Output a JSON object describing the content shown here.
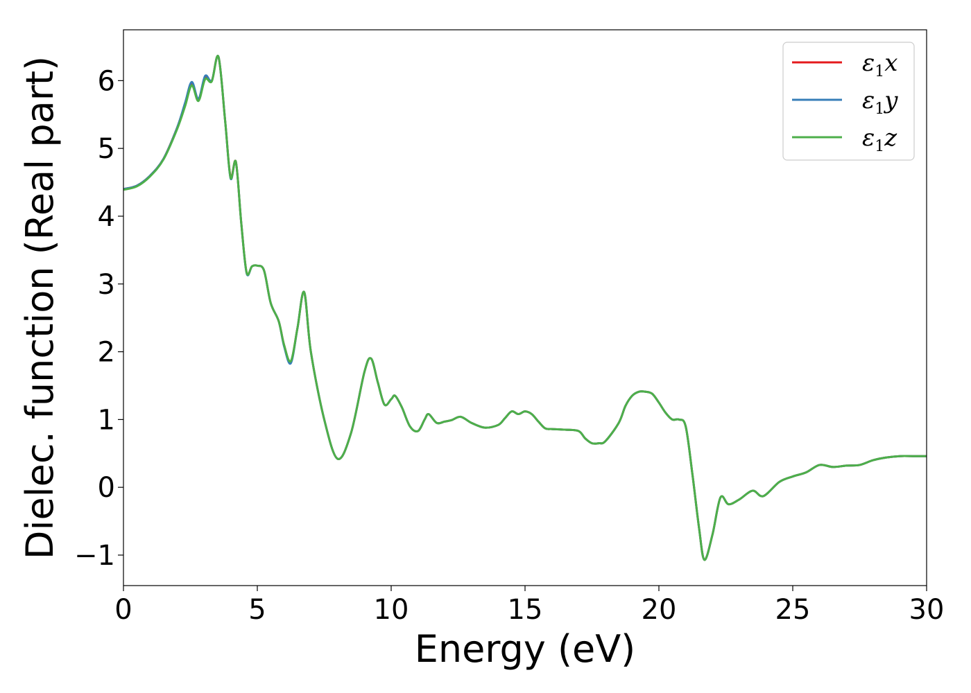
{
  "chart_data": {
    "type": "line",
    "title": "",
    "xlabel": "Energy (eV)",
    "ylabel": "Dielec. function (Real part)",
    "xlim": [
      0,
      30
    ],
    "ylim": [
      -1.45,
      6.75
    ],
    "xticks": [
      0,
      5,
      10,
      15,
      20,
      25,
      30
    ],
    "xtick_labels": [
      "0",
      "5",
      "10",
      "15",
      "20",
      "25",
      "30"
    ],
    "yticks": [
      -1,
      0,
      1,
      2,
      3,
      4,
      5,
      6
    ],
    "ytick_labels": [
      "−1",
      "0",
      "1",
      "2",
      "3",
      "4",
      "5",
      "6"
    ],
    "grid": false,
    "legend_position": "top-right",
    "x": [
      0,
      0.5,
      1.0,
      1.5,
      2.0,
      2.3,
      2.55,
      2.8,
      3.05,
      3.3,
      3.55,
      3.8,
      4.0,
      4.2,
      4.4,
      4.6,
      4.8,
      5.0,
      5.25,
      5.5,
      5.8,
      6.0,
      6.25,
      6.5,
      6.75,
      7.0,
      7.5,
      8.0,
      8.5,
      9.0,
      9.25,
      9.5,
      9.75,
      10.0,
      10.15,
      10.4,
      10.7,
      11.0,
      11.25,
      11.4,
      11.7,
      12.0,
      12.25,
      12.6,
      13.0,
      13.5,
      14.0,
      14.25,
      14.5,
      14.75,
      15.0,
      15.25,
      15.5,
      15.75,
      16.0,
      16.5,
      17.0,
      17.25,
      17.5,
      17.75,
      18.0,
      18.5,
      18.75,
      19.0,
      19.25,
      19.5,
      19.75,
      20.0,
      20.25,
      20.5,
      20.75,
      21.0,
      21.25,
      21.5,
      21.7,
      22.0,
      22.3,
      22.6,
      23.0,
      23.5,
      23.9,
      24.5,
      25.0,
      25.5,
      26.0,
      26.5,
      27.0,
      27.5,
      28.0,
      28.5,
      29.0,
      29.5,
      30.0
    ],
    "series": [
      {
        "name": "ε₁x",
        "color": "#e41a1c",
        "values": [
          4.4,
          4.45,
          4.6,
          4.85,
          5.3,
          5.65,
          5.95,
          5.72,
          6.05,
          6.0,
          6.35,
          5.4,
          4.58,
          4.8,
          3.9,
          3.17,
          3.26,
          3.27,
          3.2,
          2.72,
          2.45,
          2.1,
          1.85,
          2.35,
          2.88,
          2.0,
          1.0,
          0.42,
          0.8,
          1.7,
          1.9,
          1.55,
          1.22,
          1.3,
          1.35,
          1.18,
          0.9,
          0.83,
          1.0,
          1.08,
          0.95,
          0.97,
          0.99,
          1.04,
          0.95,
          0.88,
          0.92,
          1.02,
          1.12,
          1.08,
          1.12,
          1.08,
          0.97,
          0.87,
          0.86,
          0.85,
          0.83,
          0.72,
          0.65,
          0.65,
          0.68,
          0.95,
          1.2,
          1.35,
          1.41,
          1.41,
          1.38,
          1.25,
          1.1,
          1.0,
          1.0,
          0.9,
          0.2,
          -0.6,
          -1.07,
          -0.7,
          -0.15,
          -0.25,
          -0.18,
          -0.05,
          -0.13,
          0.08,
          0.16,
          0.22,
          0.33,
          0.3,
          0.32,
          0.33,
          0.4,
          0.44,
          0.46,
          0.46,
          0.46
        ]
      },
      {
        "name": "ε₁y",
        "color": "#377eb8",
        "values": [
          4.4,
          4.45,
          4.6,
          4.85,
          5.3,
          5.67,
          5.98,
          5.73,
          6.07,
          6.0,
          6.35,
          5.4,
          4.56,
          4.8,
          3.9,
          3.16,
          3.26,
          3.27,
          3.2,
          2.72,
          2.45,
          2.08,
          1.83,
          2.35,
          2.88,
          2.0,
          1.0,
          0.42,
          0.8,
          1.7,
          1.9,
          1.55,
          1.22,
          1.3,
          1.35,
          1.18,
          0.9,
          0.83,
          1.0,
          1.08,
          0.95,
          0.97,
          0.99,
          1.04,
          0.95,
          0.88,
          0.92,
          1.02,
          1.12,
          1.08,
          1.12,
          1.08,
          0.97,
          0.87,
          0.86,
          0.85,
          0.83,
          0.72,
          0.65,
          0.65,
          0.68,
          0.95,
          1.2,
          1.35,
          1.41,
          1.41,
          1.38,
          1.25,
          1.1,
          1.0,
          1.0,
          0.9,
          0.2,
          -0.6,
          -1.07,
          -0.7,
          -0.15,
          -0.25,
          -0.18,
          -0.05,
          -0.13,
          0.08,
          0.16,
          0.22,
          0.33,
          0.3,
          0.32,
          0.33,
          0.4,
          0.44,
          0.46,
          0.46,
          0.46
        ]
      },
      {
        "name": "ε₁z",
        "color": "#4daf4a",
        "values": [
          4.39,
          4.44,
          4.59,
          4.84,
          5.28,
          5.62,
          5.93,
          5.7,
          6.02,
          5.99,
          6.35,
          5.4,
          4.57,
          4.8,
          3.9,
          3.17,
          3.26,
          3.27,
          3.2,
          2.72,
          2.45,
          2.1,
          1.86,
          2.35,
          2.88,
          2.0,
          1.0,
          0.42,
          0.8,
          1.7,
          1.9,
          1.55,
          1.22,
          1.3,
          1.35,
          1.18,
          0.9,
          0.83,
          1.0,
          1.08,
          0.95,
          0.97,
          0.99,
          1.04,
          0.95,
          0.88,
          0.92,
          1.02,
          1.12,
          1.08,
          1.12,
          1.08,
          0.97,
          0.87,
          0.86,
          0.85,
          0.83,
          0.72,
          0.65,
          0.65,
          0.68,
          0.95,
          1.2,
          1.35,
          1.41,
          1.41,
          1.38,
          1.25,
          1.1,
          1.0,
          1.0,
          0.9,
          0.2,
          -0.6,
          -1.07,
          -0.7,
          -0.15,
          -0.25,
          -0.18,
          -0.05,
          -0.13,
          0.08,
          0.16,
          0.22,
          0.33,
          0.3,
          0.32,
          0.33,
          0.4,
          0.44,
          0.46,
          0.46,
          0.46
        ]
      }
    ]
  }
}
